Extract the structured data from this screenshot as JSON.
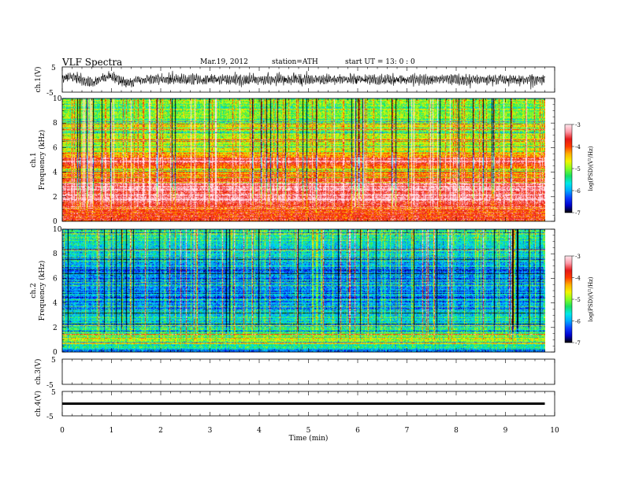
{
  "header": {
    "title": "VLF  Spectra",
    "date": "Mar.19, 2012",
    "station": "station=ATH",
    "start": "start  UT  =    13: 0  : 0"
  },
  "colors": {
    "colormap": [
      "#000000",
      "#0000cc",
      "#0a3cff",
      "#00aaff",
      "#00e8e8",
      "#18e060",
      "#88ff20",
      "#f4f400",
      "#ffb000",
      "#ff3a00",
      "#e41818",
      "#ff9aa8",
      "#ffe8ee"
    ]
  },
  "chart_data": [
    {
      "type": "line",
      "panel": "ch1-waveform",
      "ylabel": "ch.1(V)",
      "ylim": [
        -5,
        5
      ],
      "yticks": [
        "5",
        "-5"
      ],
      "xlim": [
        0,
        10
      ],
      "x_end": 9.8,
      "description_values": {
        "amplitude_approx": 2.3
      }
    },
    {
      "type": "heatmap",
      "panel": "ch1-spectrogram",
      "ylabel": "ch.1 Frequency (kHz)",
      "ylim": [
        0,
        10
      ],
      "yticks": [
        "0",
        "2",
        "4",
        "6",
        "8",
        "10"
      ],
      "xlim": [
        0,
        10
      ],
      "x_end": 9.8,
      "colorbar": {
        "label": "log(PSD)(V²/Hz)",
        "range": [
          -7,
          -3
        ],
        "ticks": [
          "-3",
          "-4",
          "-5",
          "-6",
          "-7"
        ]
      },
      "profile": [
        {
          "f": 0.0,
          "v": -3.9
        },
        {
          "f": 1.0,
          "v": -3.9
        },
        {
          "f": 1.6,
          "v": -3.3
        },
        {
          "f": 2.6,
          "v": -3.4
        },
        {
          "f": 3.6,
          "v": -3.9
        },
        {
          "f": 4.3,
          "v": -4.3
        },
        {
          "f": 4.9,
          "v": -3.4
        },
        {
          "f": 5.5,
          "v": -4.6
        },
        {
          "f": 6.5,
          "v": -4.9
        },
        {
          "f": 8.0,
          "v": -5.1
        },
        {
          "f": 10.0,
          "v": -5.2
        }
      ]
    },
    {
      "type": "heatmap",
      "panel": "ch2-spectrogram",
      "ylabel": "ch.2 Frequency (kHz)",
      "ylim": [
        0,
        10
      ],
      "yticks": [
        "0",
        "2",
        "4",
        "6",
        "8",
        "10"
      ],
      "xlim": [
        0,
        10
      ],
      "x_end": 9.8,
      "colorbar": {
        "label": "log(PSD)(V²/Hz)",
        "range": [
          -7,
          -3
        ],
        "ticks": [
          "-3",
          "-4",
          "-5",
          "-6",
          "-7"
        ]
      },
      "profile": [
        {
          "f": 0.0,
          "v": -6.3
        },
        {
          "f": 0.4,
          "v": -5.4
        },
        {
          "f": 1.0,
          "v": -4.9
        },
        {
          "f": 2.0,
          "v": -5.3
        },
        {
          "f": 3.0,
          "v": -5.8
        },
        {
          "f": 4.0,
          "v": -6.1
        },
        {
          "f": 5.0,
          "v": -6.2
        },
        {
          "f": 6.5,
          "v": -6.0
        },
        {
          "f": 8.0,
          "v": -5.6
        },
        {
          "f": 10.0,
          "v": -5.4
        }
      ]
    },
    {
      "type": "line",
      "panel": "ch3-waveform",
      "ylabel": "ch.3(V)",
      "ylim": [
        -5,
        5
      ],
      "yticks": [
        "5",
        "-5"
      ],
      "xlim": [
        0,
        10
      ]
    },
    {
      "type": "line",
      "panel": "ch4-waveform",
      "ylabel": "ch.4(V)",
      "ylim": [
        -5,
        5
      ],
      "yticks": [
        "5",
        "-5"
      ],
      "xlim": [
        0,
        10
      ],
      "x_end": 9.8,
      "constant_value": 0
    }
  ],
  "xaxis": {
    "label": "Time  (min)",
    "ticks": [
      "0",
      "1",
      "2",
      "3",
      "4",
      "5",
      "6",
      "7",
      "8",
      "9",
      "10"
    ]
  }
}
